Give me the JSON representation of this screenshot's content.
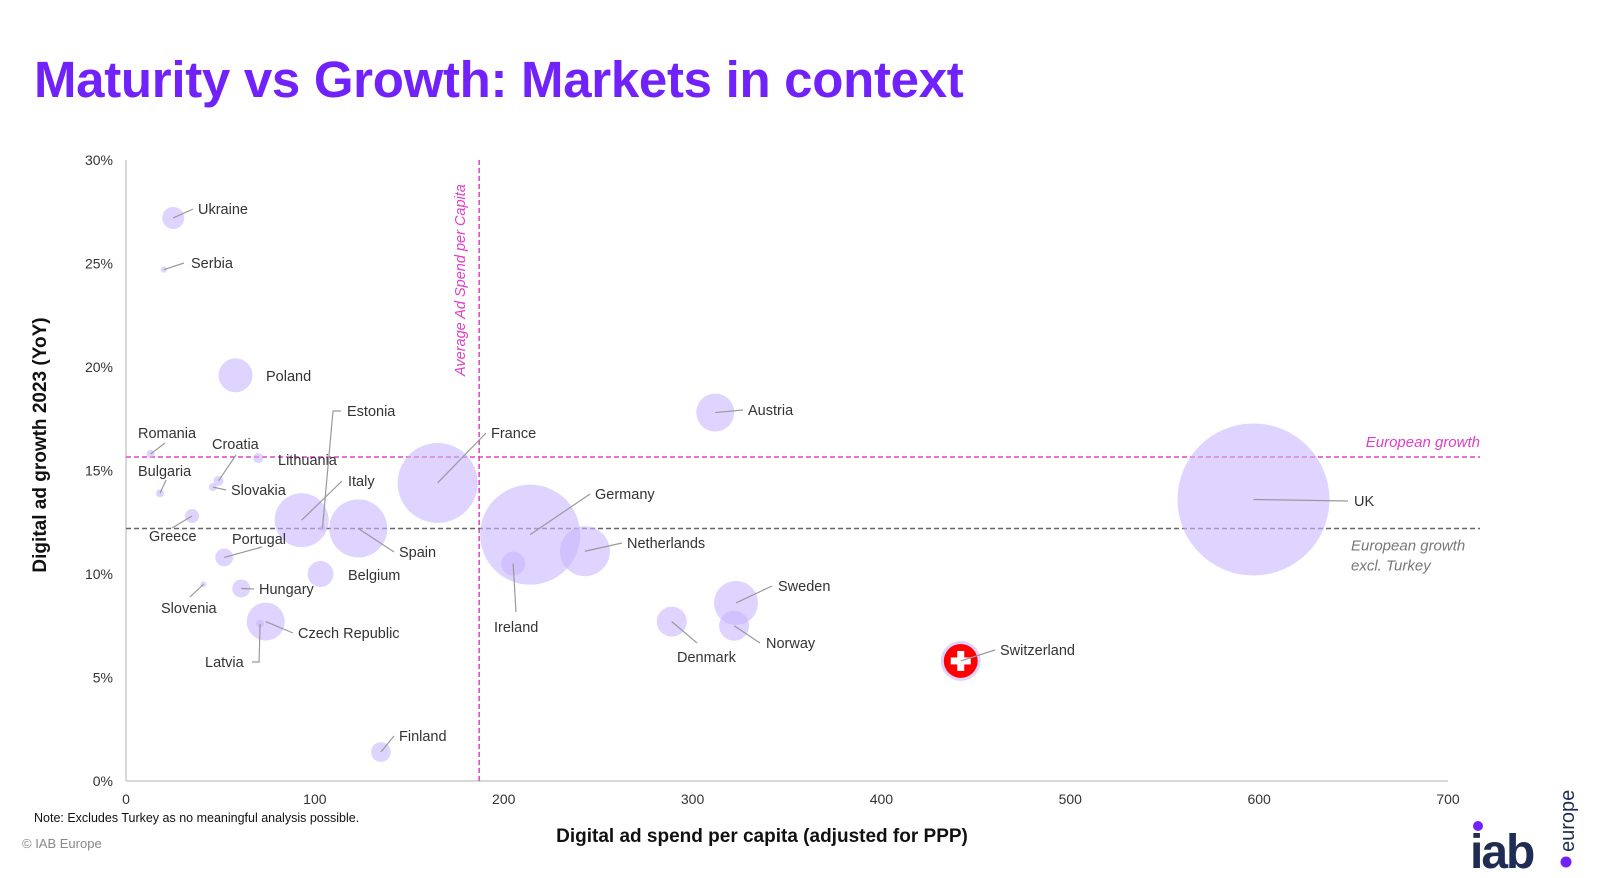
{
  "title": "Maturity vs Growth: Markets in context",
  "note": "Note: Excludes Turkey as no meaningful analysis possible.",
  "copyright": "© IAB Europe",
  "logo": {
    "text": "iab",
    "subtext": "europe"
  },
  "colors": {
    "title": "#7122fa",
    "bubble": "#c9b6ff",
    "avg_line": "#e040c8",
    "excl_line": "#666666",
    "accent": "#7122fa",
    "switzerland": "#ff0000"
  },
  "chart_data": {
    "type": "scatter",
    "subtype": "bubble",
    "title": "Maturity vs Growth: Markets in context",
    "xlabel": "Digital ad spend per capita (adjusted for PPP)",
    "ylabel": "Digital ad growth 2023 (YoY)",
    "xlim": [
      0,
      700
    ],
    "ylim": [
      0,
      30
    ],
    "x_ticks": [
      "0",
      "100",
      "200",
      "300",
      "400",
      "500",
      "600",
      "700"
    ],
    "y_ticks": [
      "0%",
      "5%",
      "10%",
      "15%",
      "20%",
      "25%",
      "30%"
    ],
    "grid": false,
    "reference_lines": [
      {
        "axis": "x",
        "value": 187,
        "label": "Average Ad Spend per Capita"
      },
      {
        "axis": "y",
        "value": 15.65,
        "label": "European growth"
      },
      {
        "axis": "y",
        "value": 12.2,
        "label": "European growth excl. Turkey"
      }
    ],
    "points": [
      {
        "name": "Ukraine",
        "x": 25,
        "y": 27.2,
        "size": 2.1
      },
      {
        "name": "Serbia",
        "x": 20,
        "y": 24.7,
        "size": 0.16
      },
      {
        "name": "Poland",
        "x": 58,
        "y": 19.6,
        "size": 5.0
      },
      {
        "name": "Romania",
        "x": 13,
        "y": 15.8,
        "size": 0.28
      },
      {
        "name": "Bulgaria",
        "x": 18,
        "y": 13.9,
        "size": 0.28
      },
      {
        "name": "Croatia",
        "x": 49,
        "y": 14.5,
        "size": 0.43
      },
      {
        "name": "Slovakia",
        "x": 46,
        "y": 14.2,
        "size": 0.28
      },
      {
        "name": "Lithuania",
        "x": 70,
        "y": 15.6,
        "size": 0.43
      },
      {
        "name": "Greece",
        "x": 35,
        "y": 12.8,
        "size": 0.85
      },
      {
        "name": "Italy",
        "x": 93,
        "y": 12.6,
        "size": 12.6
      },
      {
        "name": "Estonia",
        "x": 104,
        "y": 12.2,
        "size": 0.16
      },
      {
        "name": "Spain",
        "x": 123,
        "y": 12.2,
        "size": 14.6
      },
      {
        "name": "Portugal",
        "x": 52,
        "y": 10.8,
        "size": 1.4
      },
      {
        "name": "Belgium",
        "x": 103,
        "y": 10.0,
        "size": 2.9
      },
      {
        "name": "Hungary",
        "x": 61,
        "y": 9.3,
        "size": 1.4
      },
      {
        "name": "Slovenia",
        "x": 41,
        "y": 9.5,
        "size": 0.16
      },
      {
        "name": "Czech Republic",
        "x": 74,
        "y": 7.7,
        "size": 6.25
      },
      {
        "name": "Latvia",
        "x": 71,
        "y": 7.6,
        "size": 0.28
      },
      {
        "name": "Finland",
        "x": 135,
        "y": 1.4,
        "size": 1.7
      },
      {
        "name": "France",
        "x": 165,
        "y": 14.4,
        "size": 27.7
      },
      {
        "name": "Germany",
        "x": 214,
        "y": 11.9,
        "size": 43.3
      },
      {
        "name": "Ireland",
        "x": 205,
        "y": 10.5,
        "size": 2.5
      },
      {
        "name": "Netherlands",
        "x": 243,
        "y": 11.1,
        "size": 10.8
      },
      {
        "name": "Austria",
        "x": 312,
        "y": 17.8,
        "size": 6.25
      },
      {
        "name": "Denmark",
        "x": 289,
        "y": 7.7,
        "size": 3.9
      },
      {
        "name": "Sweden",
        "x": 323,
        "y": 8.6,
        "size": 8.4
      },
      {
        "name": "Norway",
        "x": 322,
        "y": 7.5,
        "size": 3.9
      },
      {
        "name": "Switzerland",
        "x": 442,
        "y": 5.8,
        "size": 6.9,
        "highlight": true
      },
      {
        "name": "UK",
        "x": 597,
        "y": 13.6,
        "size": 100
      }
    ]
  }
}
